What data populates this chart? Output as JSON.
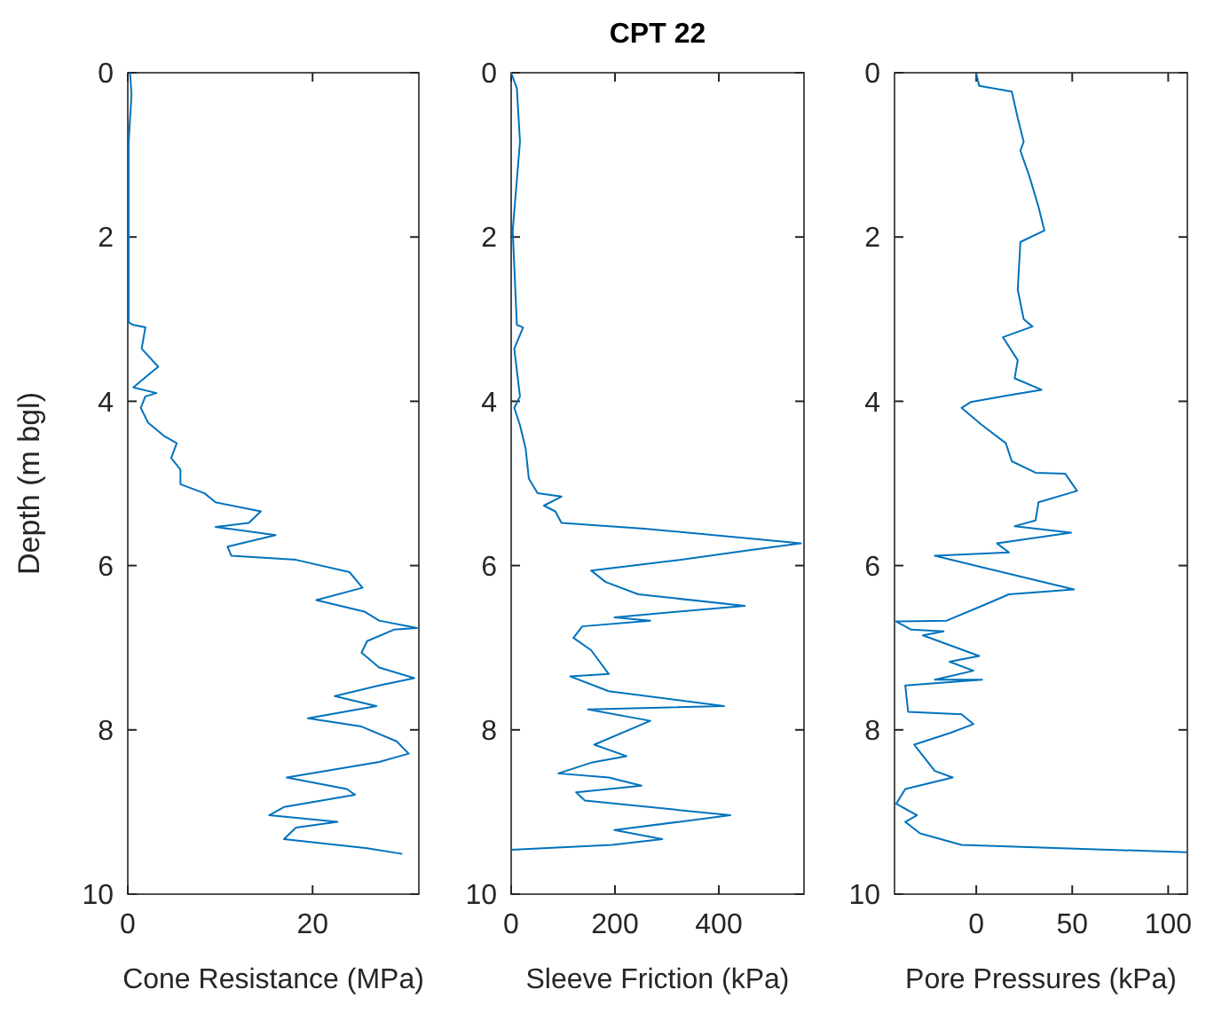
{
  "chart_data": [
    {
      "type": "line",
      "xlabel": "Cone Resistance (MPa)",
      "ylabel": "Depth (m bgl)",
      "color": "#0072bd",
      "xlim": [
        0,
        31.5
      ],
      "xticks": [
        0,
        20
      ],
      "ylim": [
        10,
        0
      ],
      "yticks": [
        0,
        2,
        4,
        6,
        8,
        10
      ],
      "x": [
        0.25,
        0.4,
        0.1,
        0.1,
        0.6,
        1.9,
        1.5,
        3.3,
        2.2,
        0.6,
        3.1,
        1.9,
        1.4,
        2.2,
        3.9,
        5.3,
        4.7,
        5.7,
        5.7,
        8.3,
        9.5,
        14.4,
        13.1,
        9.5,
        16,
        10.8,
        11.2,
        18.2,
        24,
        25.4,
        20.4,
        23,
        25.6,
        27.2,
        31.3,
        28.8,
        25.9,
        25.3,
        27.2,
        31,
        27.2,
        22.4,
        26.9,
        19.5,
        25.3,
        29.1,
        30.4,
        27.2,
        17.2,
        23.7,
        24.6,
        16.9,
        15.3,
        22.7,
        18.2,
        16.9,
        25.9,
        29.7
      ],
      "values": [
        0,
        0.27,
        0.84,
        3.04,
        3.07,
        3.1,
        3.36,
        3.58,
        3.68,
        3.83,
        3.9,
        3.94,
        4.08,
        4.26,
        4.42,
        4.51,
        4.69,
        4.83,
        5.01,
        5.12,
        5.23,
        5.34,
        5.48,
        5.53,
        5.63,
        5.77,
        5.88,
        5.93,
        6.08,
        6.27,
        6.42,
        6.49,
        6.56,
        6.67,
        6.76,
        6.78,
        6.92,
        7.06,
        7.24,
        7.37,
        7.46,
        7.59,
        7.71,
        7.86,
        7.96,
        8.14,
        8.29,
        8.39,
        8.58,
        8.72,
        8.79,
        8.94,
        9.04,
        9.12,
        9.19,
        9.33,
        9.44,
        9.51
      ]
    },
    {
      "type": "line",
      "title": "CPT 22",
      "xlabel": "Sleeve Friction (kPa)",
      "color": "#0072bd",
      "xlim": [
        0,
        564
      ],
      "xticks": [
        0,
        200,
        400
      ],
      "ylim": [
        10,
        0
      ],
      "yticks": [
        0,
        2,
        4,
        6,
        8,
        10
      ],
      "x": [
        0,
        11,
        17,
        3,
        11,
        23,
        6,
        17,
        6,
        17,
        28,
        34,
        51,
        97,
        63,
        85,
        97,
        256,
        558,
        462,
        313,
        154,
        182,
        245,
        450,
        199,
        268,
        137,
        120,
        154,
        188,
        114,
        188,
        410,
        148,
        268,
        160,
        222,
        154,
        91,
        188,
        251,
        125,
        142,
        422,
        199,
        291,
        194,
        0
      ],
      "values": [
        0,
        0.19,
        0.84,
        1.92,
        3.07,
        3.1,
        3.36,
        3.94,
        4.08,
        4.29,
        4.58,
        4.94,
        5.12,
        5.16,
        5.27,
        5.34,
        5.48,
        5.55,
        5.73,
        5.81,
        5.94,
        6.06,
        6.2,
        6.35,
        6.49,
        6.63,
        6.67,
        6.74,
        6.88,
        7.03,
        7.32,
        7.35,
        7.53,
        7.71,
        7.75,
        7.89,
        8.18,
        8.32,
        8.4,
        8.53,
        8.58,
        8.68,
        8.76,
        8.86,
        9.04,
        9.22,
        9.33,
        9.4,
        9.46
      ]
    },
    {
      "type": "line",
      "xlabel": "Pore Pressures (kPa)",
      "color": "#0072bd",
      "xlim": [
        -42.6,
        110
      ],
      "xticks": [
        0,
        50,
        100
      ],
      "ylim": [
        10,
        0
      ],
      "yticks": [
        0,
        2,
        4,
        6,
        8,
        10
      ],
      "x": [
        0,
        1.5,
        18.5,
        21.6,
        24.7,
        23,
        27.8,
        32.4,
        35.5,
        23,
        21.6,
        24.7,
        29.3,
        13.9,
        21.6,
        20,
        34,
        18.5,
        -3,
        -7.7,
        3,
        15.4,
        18.5,
        30.9,
        46.3,
        52.5,
        32.4,
        30.9,
        20,
        49.4,
        10.8,
        17,
        -21.6,
        3,
        50.9,
        17,
        3,
        -15.4,
        -41.7,
        -34,
        -17,
        -27.8,
        1.5,
        -13.9,
        -1.5,
        -21.6,
        3,
        -37,
        -35.5,
        -7.7,
        -1.5,
        -13.9,
        -32.4,
        -21.6,
        -12.3,
        -37,
        -41.7,
        -30.9,
        -37,
        -29.3,
        -7.7,
        109.6
      ],
      "values": [
        0.01,
        0.16,
        0.23,
        0.55,
        0.84,
        0.95,
        1.27,
        1.63,
        1.92,
        2.06,
        2.64,
        3.0,
        3.09,
        3.22,
        3.5,
        3.72,
        3.86,
        3.92,
        4.01,
        4.08,
        4.29,
        4.51,
        4.73,
        4.87,
        4.88,
        5.09,
        5.23,
        5.45,
        5.52,
        5.6,
        5.73,
        5.84,
        5.88,
        6.02,
        6.29,
        6.35,
        6.49,
        6.67,
        6.68,
        6.78,
        6.8,
        6.85,
        7.1,
        7.17,
        7.28,
        7.39,
        7.39,
        7.46,
        7.78,
        7.81,
        7.93,
        8.04,
        8.18,
        8.5,
        8.58,
        8.72,
        8.9,
        9.04,
        9.12,
        9.26,
        9.4,
        9.49
      ]
    }
  ]
}
